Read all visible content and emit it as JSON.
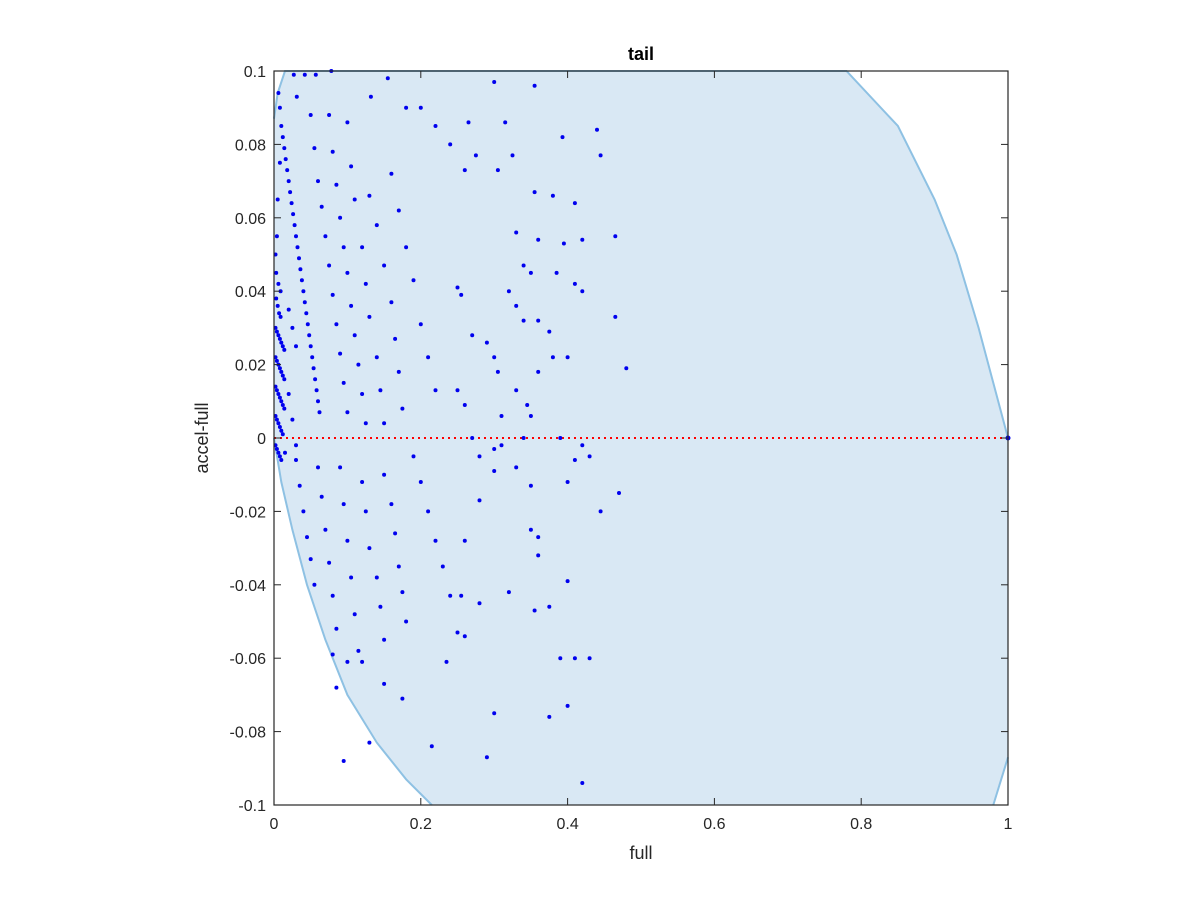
{
  "chart_data": {
    "type": "scatter",
    "title": "tail",
    "xlabel": "full",
    "ylabel": "accel-full",
    "xlim": [
      0,
      1
    ],
    "ylim": [
      -0.1,
      0.1
    ],
    "xticks": [
      "0",
      "0.2",
      "0.4",
      "0.6",
      "0.8",
      "1"
    ],
    "yticks": [
      "0.1",
      "0.08",
      "0.06",
      "0.04",
      "0.02",
      "0",
      "-0.02",
      "-0.04",
      "-0.06",
      "-0.08",
      "-0.1"
    ],
    "grid": false,
    "colors": {
      "points": "#0000ee",
      "region_fill": "#d9e8f4",
      "region_edge": "#8ec1e3",
      "reference_line": "#ff0000",
      "axes": "#262626"
    },
    "region_upper": [
      [
        0.0,
        0.087
      ],
      [
        0.005,
        0.094
      ],
      [
        0.015,
        0.1
      ],
      [
        0.78,
        0.1
      ],
      [
        0.85,
        0.085
      ],
      [
        0.9,
        0.065
      ],
      [
        0.93,
        0.05
      ],
      [
        0.96,
        0.03
      ],
      [
        0.98,
        0.015
      ],
      [
        1.0,
        0.0
      ]
    ],
    "region_lower": [
      [
        0.0,
        0.0
      ],
      [
        0.01,
        -0.012
      ],
      [
        0.025,
        -0.025
      ],
      [
        0.045,
        -0.04
      ],
      [
        0.07,
        -0.055
      ],
      [
        0.1,
        -0.07
      ],
      [
        0.14,
        -0.083
      ],
      [
        0.18,
        -0.093
      ],
      [
        0.215,
        -0.1
      ],
      [
        0.98,
        -0.1
      ],
      [
        1.0,
        -0.087
      ]
    ],
    "reference_line": {
      "y": 0,
      "style": "dotted"
    },
    "points": [
      [
        0.006,
        0.094
      ],
      [
        0.008,
        0.09
      ],
      [
        0.01,
        0.085
      ],
      [
        0.012,
        0.082
      ],
      [
        0.014,
        0.079
      ],
      [
        0.016,
        0.076
      ],
      [
        0.018,
        0.073
      ],
      [
        0.02,
        0.07
      ],
      [
        0.022,
        0.067
      ],
      [
        0.024,
        0.064
      ],
      [
        0.026,
        0.061
      ],
      [
        0.028,
        0.058
      ],
      [
        0.03,
        0.055
      ],
      [
        0.032,
        0.052
      ],
      [
        0.034,
        0.049
      ],
      [
        0.036,
        0.046
      ],
      [
        0.038,
        0.043
      ],
      [
        0.04,
        0.04
      ],
      [
        0.042,
        0.037
      ],
      [
        0.044,
        0.034
      ],
      [
        0.046,
        0.031
      ],
      [
        0.048,
        0.028
      ],
      [
        0.05,
        0.025
      ],
      [
        0.052,
        0.022
      ],
      [
        0.054,
        0.019
      ],
      [
        0.056,
        0.016
      ],
      [
        0.058,
        0.013
      ],
      [
        0.06,
        0.01
      ],
      [
        0.062,
        0.007
      ],
      [
        0.05,
        0.088
      ],
      [
        0.055,
        0.079
      ],
      [
        0.06,
        0.07
      ],
      [
        0.065,
        0.063
      ],
      [
        0.07,
        0.055
      ],
      [
        0.075,
        0.047
      ],
      [
        0.08,
        0.039
      ],
      [
        0.085,
        0.031
      ],
      [
        0.09,
        0.023
      ],
      [
        0.095,
        0.015
      ],
      [
        0.1,
        0.007
      ],
      [
        0.075,
        0.088
      ],
      [
        0.08,
        0.078
      ],
      [
        0.085,
        0.069
      ],
      [
        0.09,
        0.06
      ],
      [
        0.095,
        0.052
      ],
      [
        0.1,
        0.045
      ],
      [
        0.105,
        0.036
      ],
      [
        0.11,
        0.028
      ],
      [
        0.115,
        0.02
      ],
      [
        0.12,
        0.012
      ],
      [
        0.125,
        0.004
      ],
      [
        0.1,
        0.086
      ],
      [
        0.105,
        0.074
      ],
      [
        0.11,
        0.065
      ],
      [
        0.12,
        0.052
      ],
      [
        0.125,
        0.042
      ],
      [
        0.13,
        0.033
      ],
      [
        0.14,
        0.022
      ],
      [
        0.145,
        0.013
      ],
      [
        0.15,
        0.004
      ],
      [
        0.13,
        0.066
      ],
      [
        0.14,
        0.058
      ],
      [
        0.15,
        0.047
      ],
      [
        0.16,
        0.037
      ],
      [
        0.165,
        0.027
      ],
      [
        0.17,
        0.018
      ],
      [
        0.175,
        0.008
      ],
      [
        0.16,
        0.072
      ],
      [
        0.17,
        0.062
      ],
      [
        0.18,
        0.052
      ],
      [
        0.19,
        0.043
      ],
      [
        0.2,
        0.031
      ],
      [
        0.21,
        0.022
      ],
      [
        0.22,
        0.013
      ],
      [
        0.19,
        -0.005
      ],
      [
        0.2,
        -0.012
      ],
      [
        0.21,
        -0.02
      ],
      [
        0.22,
        -0.028
      ],
      [
        0.23,
        -0.035
      ],
      [
        0.24,
        -0.043
      ],
      [
        0.25,
        -0.053
      ],
      [
        0.15,
        -0.01
      ],
      [
        0.16,
        -0.018
      ],
      [
        0.165,
        -0.026
      ],
      [
        0.17,
        -0.035
      ],
      [
        0.175,
        -0.042
      ],
      [
        0.18,
        -0.05
      ],
      [
        0.12,
        -0.012
      ],
      [
        0.125,
        -0.02
      ],
      [
        0.13,
        -0.03
      ],
      [
        0.14,
        -0.038
      ],
      [
        0.145,
        -0.046
      ],
      [
        0.15,
        -0.055
      ],
      [
        0.09,
        -0.008
      ],
      [
        0.095,
        -0.018
      ],
      [
        0.1,
        -0.028
      ],
      [
        0.105,
        -0.038
      ],
      [
        0.11,
        -0.048
      ],
      [
        0.115,
        -0.058
      ],
      [
        0.06,
        -0.008
      ],
      [
        0.065,
        -0.016
      ],
      [
        0.07,
        -0.025
      ],
      [
        0.075,
        -0.034
      ],
      [
        0.08,
        -0.043
      ],
      [
        0.085,
        -0.052
      ],
      [
        0.03,
        -0.006
      ],
      [
        0.035,
        -0.013
      ],
      [
        0.04,
        -0.02
      ],
      [
        0.045,
        -0.027
      ],
      [
        0.05,
        -0.033
      ],
      [
        0.055,
        -0.04
      ],
      [
        0.002,
        0.03
      ],
      [
        0.004,
        0.029
      ],
      [
        0.006,
        0.028
      ],
      [
        0.008,
        0.027
      ],
      [
        0.01,
        0.026
      ],
      [
        0.012,
        0.025
      ],
      [
        0.014,
        0.024
      ],
      [
        0.002,
        0.022
      ],
      [
        0.004,
        0.021
      ],
      [
        0.006,
        0.02
      ],
      [
        0.008,
        0.019
      ],
      [
        0.01,
        0.018
      ],
      [
        0.012,
        0.017
      ],
      [
        0.014,
        0.016
      ],
      [
        0.002,
        0.014
      ],
      [
        0.004,
        0.013
      ],
      [
        0.006,
        0.012
      ],
      [
        0.008,
        0.011
      ],
      [
        0.01,
        0.01
      ],
      [
        0.012,
        0.009
      ],
      [
        0.014,
        0.008
      ],
      [
        0.002,
        0.006
      ],
      [
        0.004,
        0.005
      ],
      [
        0.006,
        0.004
      ],
      [
        0.008,
        0.003
      ],
      [
        0.01,
        0.002
      ],
      [
        0.012,
        0.001
      ],
      [
        0.002,
        -0.002
      ],
      [
        0.004,
        -0.003
      ],
      [
        0.006,
        -0.004
      ],
      [
        0.008,
        -0.005
      ],
      [
        0.01,
        -0.006
      ],
      [
        0.003,
        0.038
      ],
      [
        0.005,
        0.036
      ],
      [
        0.007,
        0.034
      ],
      [
        0.009,
        0.033
      ],
      [
        0.003,
        0.045
      ],
      [
        0.006,
        0.042
      ],
      [
        0.009,
        0.04
      ],
      [
        0.02,
        0.035
      ],
      [
        0.025,
        0.03
      ],
      [
        0.03,
        0.025
      ],
      [
        0.02,
        0.012
      ],
      [
        0.025,
        0.005
      ],
      [
        0.03,
        -0.002
      ],
      [
        0.015,
        -0.004
      ],
      [
        0.005,
        0.065
      ],
      [
        0.008,
        0.075
      ],
      [
        0.004,
        0.055
      ],
      [
        0.002,
        0.05
      ],
      [
        0.027,
        0.099
      ],
      [
        0.042,
        0.099
      ],
      [
        0.057,
        0.099
      ],
      [
        0.078,
        0.1
      ],
      [
        0.031,
        0.093
      ],
      [
        0.132,
        0.093
      ],
      [
        0.155,
        0.098
      ],
      [
        0.18,
        0.09
      ],
      [
        0.2,
        0.09
      ],
      [
        0.22,
        0.085
      ],
      [
        0.24,
        0.08
      ],
      [
        0.265,
        0.086
      ],
      [
        0.3,
        0.097
      ],
      [
        0.315,
        0.086
      ],
      [
        0.355,
        0.096
      ],
      [
        0.393,
        0.082
      ],
      [
        0.445,
        0.077
      ],
      [
        0.44,
        0.084
      ],
      [
        0.26,
        0.073
      ],
      [
        0.275,
        0.077
      ],
      [
        0.305,
        0.073
      ],
      [
        0.325,
        0.077
      ],
      [
        0.355,
        0.067
      ],
      [
        0.38,
        0.066
      ],
      [
        0.41,
        0.064
      ],
      [
        0.36,
        0.054
      ],
      [
        0.395,
        0.053
      ],
      [
        0.42,
        0.054
      ],
      [
        0.465,
        0.055
      ],
      [
        0.33,
        0.056
      ],
      [
        0.34,
        0.047
      ],
      [
        0.35,
        0.045
      ],
      [
        0.385,
        0.045
      ],
      [
        0.41,
        0.042
      ],
      [
        0.25,
        0.041
      ],
      [
        0.255,
        0.039
      ],
      [
        0.32,
        0.04
      ],
      [
        0.33,
        0.036
      ],
      [
        0.34,
        0.032
      ],
      [
        0.36,
        0.032
      ],
      [
        0.375,
        0.029
      ],
      [
        0.42,
        0.04
      ],
      [
        0.465,
        0.033
      ],
      [
        0.27,
        0.028
      ],
      [
        0.29,
        0.026
      ],
      [
        0.3,
        0.022
      ],
      [
        0.305,
        0.018
      ],
      [
        0.36,
        0.018
      ],
      [
        0.38,
        0.022
      ],
      [
        0.4,
        0.022
      ],
      [
        0.48,
        0.019
      ],
      [
        0.25,
        0.013
      ],
      [
        0.26,
        0.009
      ],
      [
        0.33,
        0.013
      ],
      [
        0.345,
        0.009
      ],
      [
        0.27,
        0.0
      ],
      [
        0.28,
        -0.005
      ],
      [
        0.3,
        -0.003
      ],
      [
        0.31,
        -0.002
      ],
      [
        0.34,
        0.0
      ],
      [
        0.35,
        0.006
      ],
      [
        0.31,
        0.006
      ],
      [
        0.42,
        -0.002
      ],
      [
        0.43,
        -0.005
      ],
      [
        0.39,
        0.0
      ],
      [
        0.41,
        -0.006
      ],
      [
        0.3,
        -0.009
      ],
      [
        0.33,
        -0.008
      ],
      [
        0.35,
        -0.013
      ],
      [
        0.4,
        -0.012
      ],
      [
        0.47,
        -0.015
      ],
      [
        0.445,
        -0.02
      ],
      [
        0.28,
        -0.017
      ],
      [
        0.35,
        -0.025
      ],
      [
        0.36,
        -0.027
      ],
      [
        0.36,
        -0.032
      ],
      [
        0.26,
        -0.028
      ],
      [
        0.255,
        -0.043
      ],
      [
        0.28,
        -0.045
      ],
      [
        0.32,
        -0.042
      ],
      [
        0.355,
        -0.047
      ],
      [
        0.375,
        -0.046
      ],
      [
        0.4,
        -0.039
      ],
      [
        0.39,
        -0.06
      ],
      [
        0.41,
        -0.06
      ],
      [
        0.43,
        -0.06
      ],
      [
        0.26,
        -0.054
      ],
      [
        0.235,
        -0.061
      ],
      [
        0.3,
        -0.075
      ],
      [
        0.375,
        -0.076
      ],
      [
        0.4,
        -0.073
      ],
      [
        0.29,
        -0.087
      ],
      [
        0.42,
        -0.094
      ],
      [
        0.13,
        -0.083
      ],
      [
        0.215,
        -0.084
      ],
      [
        0.095,
        -0.088
      ],
      [
        0.175,
        -0.071
      ],
      [
        0.15,
        -0.067
      ],
      [
        0.12,
        -0.061
      ],
      [
        0.1,
        -0.061
      ],
      [
        0.085,
        -0.068
      ],
      [
        0.08,
        -0.059
      ]
    ]
  }
}
